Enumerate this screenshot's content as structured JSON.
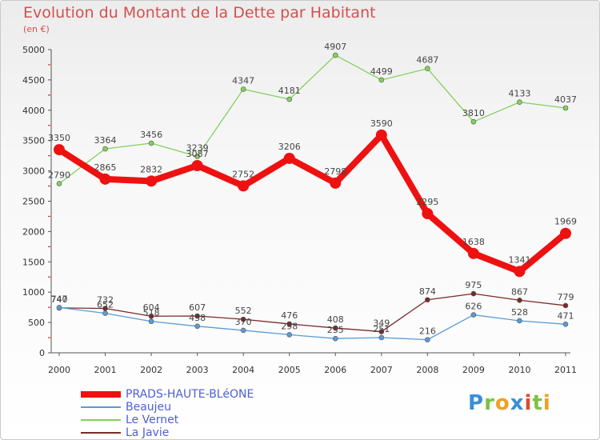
{
  "title": "Evolution du Montant de la Dette par Habitant",
  "unit": "(en €)",
  "logo": {
    "text": "Proxiti",
    "colors": [
      "#3a8fd6",
      "#7cc242",
      "#f0a020",
      "#3a8fd6",
      "#e04a2a",
      "#7cc242",
      "#f0a020"
    ]
  },
  "chart_data": {
    "type": "line",
    "title": "Evolution du Montant de la Dette par Habitant",
    "ylabel": "(en €)",
    "xlabel": "",
    "ylim": [
      0,
      5000
    ],
    "yticks": [
      0,
      500,
      1000,
      1500,
      2000,
      2500,
      3000,
      3500,
      4000,
      4500,
      5000
    ],
    "categories": [
      "2000",
      "2001",
      "2002",
      "2003",
      "2004",
      "2005",
      "2006",
      "2007",
      "2008",
      "2009",
      "2010",
      "2011"
    ],
    "legend_position": "bottom-left",
    "grid": false,
    "series": [
      {
        "name": "PRADS-HAUTE-BLéONE",
        "color": "#ee1111",
        "emphasis": true,
        "values": [
          3350,
          2865,
          2832,
          3087,
          2752,
          3206,
          2798,
          3590,
          2295,
          1638,
          1341,
          1969
        ]
      },
      {
        "name": "Beaujeu",
        "color": "#5b9bd5",
        "values": [
          747,
          652,
          518,
          438,
          370,
          298,
          235,
          251,
          216,
          626,
          528,
          471
        ]
      },
      {
        "name": "Le Vernet",
        "color": "#84d05c",
        "values": [
          2790,
          3364,
          3456,
          3239,
          4347,
          4181,
          4907,
          4499,
          4687,
          3810,
          4133,
          4037
        ]
      },
      {
        "name": "La Javie",
        "color": "#7a2a2a",
        "values": [
          740,
          732,
          604,
          607,
          552,
          476,
          408,
          349,
          874,
          975,
          867,
          779
        ]
      }
    ]
  }
}
